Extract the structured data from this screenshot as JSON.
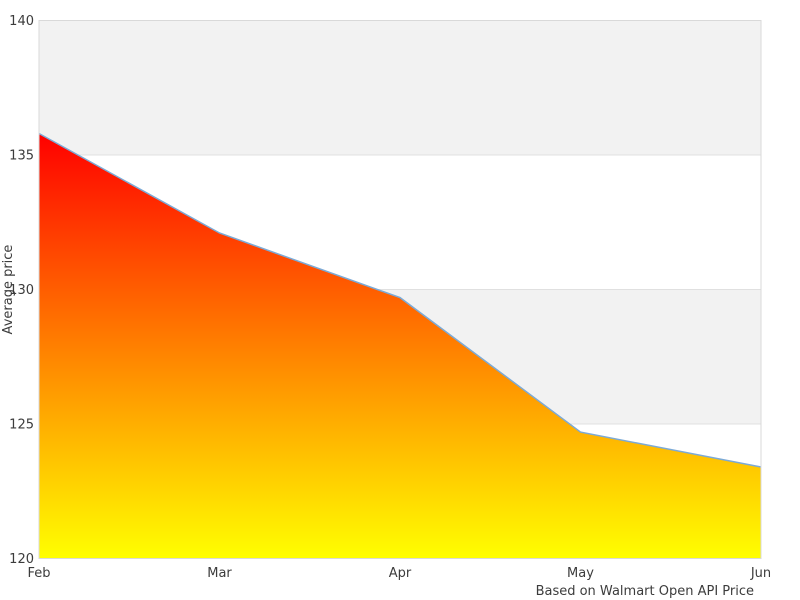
{
  "chart_data": {
    "type": "area",
    "title": "",
    "categories": [
      "Feb",
      "Mar",
      "Apr",
      "May",
      "Jun"
    ],
    "values": [
      135.8,
      132.1,
      129.7,
      124.7,
      123.4
    ],
    "xlabel": "",
    "ylabel": "Average price",
    "ylim": [
      120,
      140
    ],
    "yticks": [
      120,
      125,
      130,
      135,
      140
    ],
    "caption": "Based on Walmart Open API Price",
    "legend": "none",
    "grid": "alternating horizontal plot bands every 5 units, gray band at top interval",
    "style": {
      "line_color": "#7caad6",
      "gradient_top": "#ff0000",
      "gradient_bottom": "#ffff00",
      "band_color": "#f2f2f2",
      "grid_color": "#e0e0e0",
      "border_color": "#d9d9d9",
      "text_color": "#3c3c3c",
      "background_color": "#ffffff"
    }
  }
}
